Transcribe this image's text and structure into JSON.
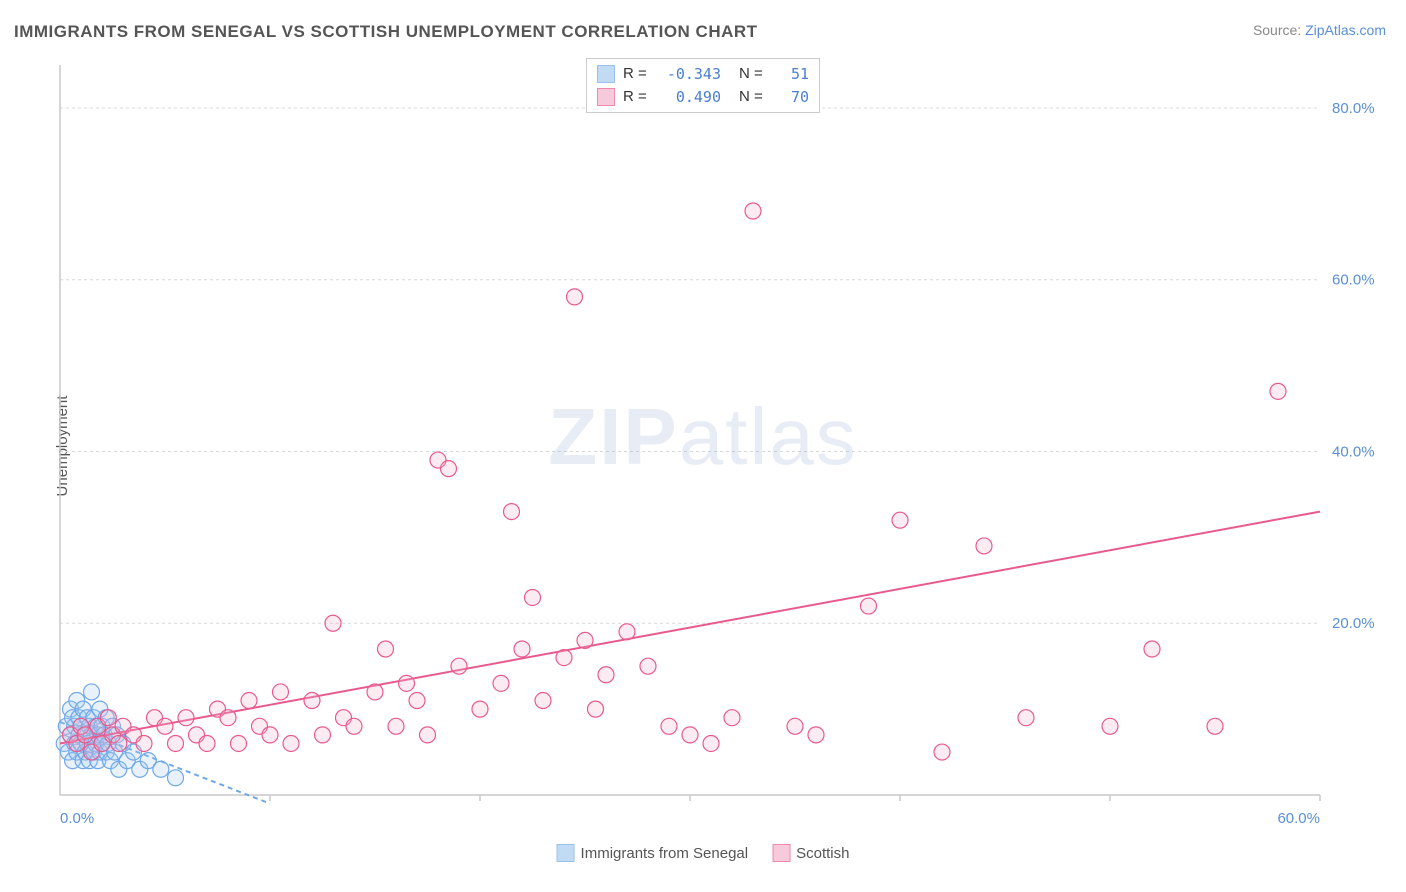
{
  "title": "IMMIGRANTS FROM SENEGAL VS SCOTTISH UNEMPLOYMENT CORRELATION CHART",
  "source_prefix": "Source: ",
  "source_link": "ZipAtlas.com",
  "ylabel": "Unemployment",
  "watermark_zip": "ZIP",
  "watermark_atlas": "atlas",
  "chart": {
    "type": "scatter",
    "xlim": [
      0,
      60
    ],
    "ylim": [
      0,
      85
    ],
    "xticks": [
      {
        "v": 0,
        "label": "0.0%"
      },
      {
        "v": 60,
        "label": "60.0%"
      }
    ],
    "yticks": [
      {
        "v": 20,
        "label": "20.0%"
      },
      {
        "v": 40,
        "label": "40.0%"
      },
      {
        "v": 60,
        "label": "60.0%"
      },
      {
        "v": 80,
        "label": "80.0%"
      }
    ],
    "xtick_marks": [
      10,
      20,
      30,
      40,
      50,
      60
    ],
    "gridline_color": "#d8d8d8",
    "axis_color": "#c8c8c8",
    "background": "#ffffff",
    "tick_font_color": "#5a8fd6",
    "marker_radius": 8,
    "marker_stroke_width": 1.2,
    "fill_opacity": 0.25,
    "series": [
      {
        "name": "Immigrants from Senegal",
        "color_stroke": "#6fa8e8",
        "color_fill": "#a8cdf2",
        "R": "-0.343",
        "N": "51",
        "trend": {
          "x1": 0,
          "y1": 8.5,
          "x2": 10,
          "y2": -1,
          "dash": "5,4",
          "extend": false
        },
        "points": [
          [
            0.2,
            6
          ],
          [
            0.3,
            8
          ],
          [
            0.4,
            5
          ],
          [
            0.5,
            10
          ],
          [
            0.5,
            7
          ],
          [
            0.6,
            9
          ],
          [
            0.6,
            4
          ],
          [
            0.7,
            8
          ],
          [
            0.7,
            6
          ],
          [
            0.8,
            11
          ],
          [
            0.8,
            5
          ],
          [
            0.9,
            7
          ],
          [
            0.9,
            9
          ],
          [
            1.0,
            6
          ],
          [
            1.0,
            8
          ],
          [
            1.1,
            4
          ],
          [
            1.1,
            10
          ],
          [
            1.2,
            7
          ],
          [
            1.2,
            5
          ],
          [
            1.3,
            9
          ],
          [
            1.3,
            6
          ],
          [
            1.4,
            8
          ],
          [
            1.4,
            4
          ],
          [
            1.5,
            7
          ],
          [
            1.5,
            12
          ],
          [
            1.6,
            5
          ],
          [
            1.6,
            9
          ],
          [
            1.7,
            6
          ],
          [
            1.7,
            8
          ],
          [
            1.8,
            4
          ],
          [
            1.8,
            7
          ],
          [
            1.9,
            10
          ],
          [
            1.9,
            5
          ],
          [
            2.0,
            8
          ],
          [
            2.0,
            6
          ],
          [
            2.1,
            7
          ],
          [
            2.2,
            5
          ],
          [
            2.2,
            9
          ],
          [
            2.3,
            6
          ],
          [
            2.4,
            4
          ],
          [
            2.5,
            8
          ],
          [
            2.6,
            5
          ],
          [
            2.7,
            7
          ],
          [
            2.8,
            3
          ],
          [
            3.0,
            6
          ],
          [
            3.2,
            4
          ],
          [
            3.5,
            5
          ],
          [
            3.8,
            3
          ],
          [
            4.2,
            4
          ],
          [
            4.8,
            3
          ],
          [
            5.5,
            2
          ]
        ]
      },
      {
        "name": "Scottish",
        "color_stroke": "#e85a8f",
        "color_fill": "#f5b5cd",
        "R": "0.490",
        "N": "70",
        "trend": {
          "x1": 0,
          "y1": 6,
          "x2": 60,
          "y2": 33,
          "dash": null,
          "extend": true
        },
        "points": [
          [
            0.5,
            7
          ],
          [
            0.8,
            6
          ],
          [
            1.0,
            8
          ],
          [
            1.2,
            7
          ],
          [
            1.5,
            5
          ],
          [
            1.8,
            8
          ],
          [
            2.0,
            6
          ],
          [
            2.3,
            9
          ],
          [
            2.5,
            7
          ],
          [
            2.8,
            6
          ],
          [
            3.0,
            8
          ],
          [
            3.5,
            7
          ],
          [
            4.0,
            6
          ],
          [
            4.5,
            9
          ],
          [
            5.0,
            8
          ],
          [
            5.5,
            6
          ],
          [
            6.0,
            9
          ],
          [
            6.5,
            7
          ],
          [
            7.0,
            6
          ],
          [
            7.5,
            10
          ],
          [
            8.0,
            9
          ],
          [
            8.5,
            6
          ],
          [
            9.0,
            11
          ],
          [
            9.5,
            8
          ],
          [
            10.0,
            7
          ],
          [
            10.5,
            12
          ],
          [
            11.0,
            6
          ],
          [
            12.0,
            11
          ],
          [
            12.5,
            7
          ],
          [
            13.0,
            20
          ],
          [
            13.5,
            9
          ],
          [
            14.0,
            8
          ],
          [
            15.0,
            12
          ],
          [
            15.5,
            17
          ],
          [
            16.0,
            8
          ],
          [
            16.5,
            13
          ],
          [
            17.0,
            11
          ],
          [
            17.5,
            7
          ],
          [
            18.0,
            39
          ],
          [
            18.5,
            38
          ],
          [
            19.0,
            15
          ],
          [
            20.0,
            10
          ],
          [
            21.0,
            13
          ],
          [
            21.5,
            33
          ],
          [
            22.0,
            17
          ],
          [
            22.5,
            23
          ],
          [
            23.0,
            11
          ],
          [
            24.0,
            16
          ],
          [
            24.5,
            58
          ],
          [
            25.0,
            18
          ],
          [
            25.5,
            10
          ],
          [
            26.0,
            14
          ],
          [
            27.0,
            19
          ],
          [
            28.0,
            15
          ],
          [
            29.0,
            8
          ],
          [
            30.0,
            7
          ],
          [
            31.0,
            6
          ],
          [
            32.0,
            9
          ],
          [
            33.0,
            68
          ],
          [
            35.0,
            8
          ],
          [
            36.0,
            7
          ],
          [
            38.5,
            22
          ],
          [
            40.0,
            32
          ],
          [
            42.0,
            5
          ],
          [
            44.0,
            29
          ],
          [
            46.0,
            9
          ],
          [
            50.0,
            8
          ],
          [
            52.0,
            17
          ],
          [
            55.0,
            8
          ],
          [
            58.0,
            47
          ]
        ]
      }
    ]
  },
  "legend_bottom": [
    {
      "label": "Immigrants from Senegal",
      "stroke": "#6fa8e8",
      "fill": "#a8cdf2"
    },
    {
      "label": "Scottish",
      "stroke": "#e85a8f",
      "fill": "#f5b5cd"
    }
  ],
  "legend_top": {
    "R_label": "R =",
    "N_label": "N ="
  }
}
